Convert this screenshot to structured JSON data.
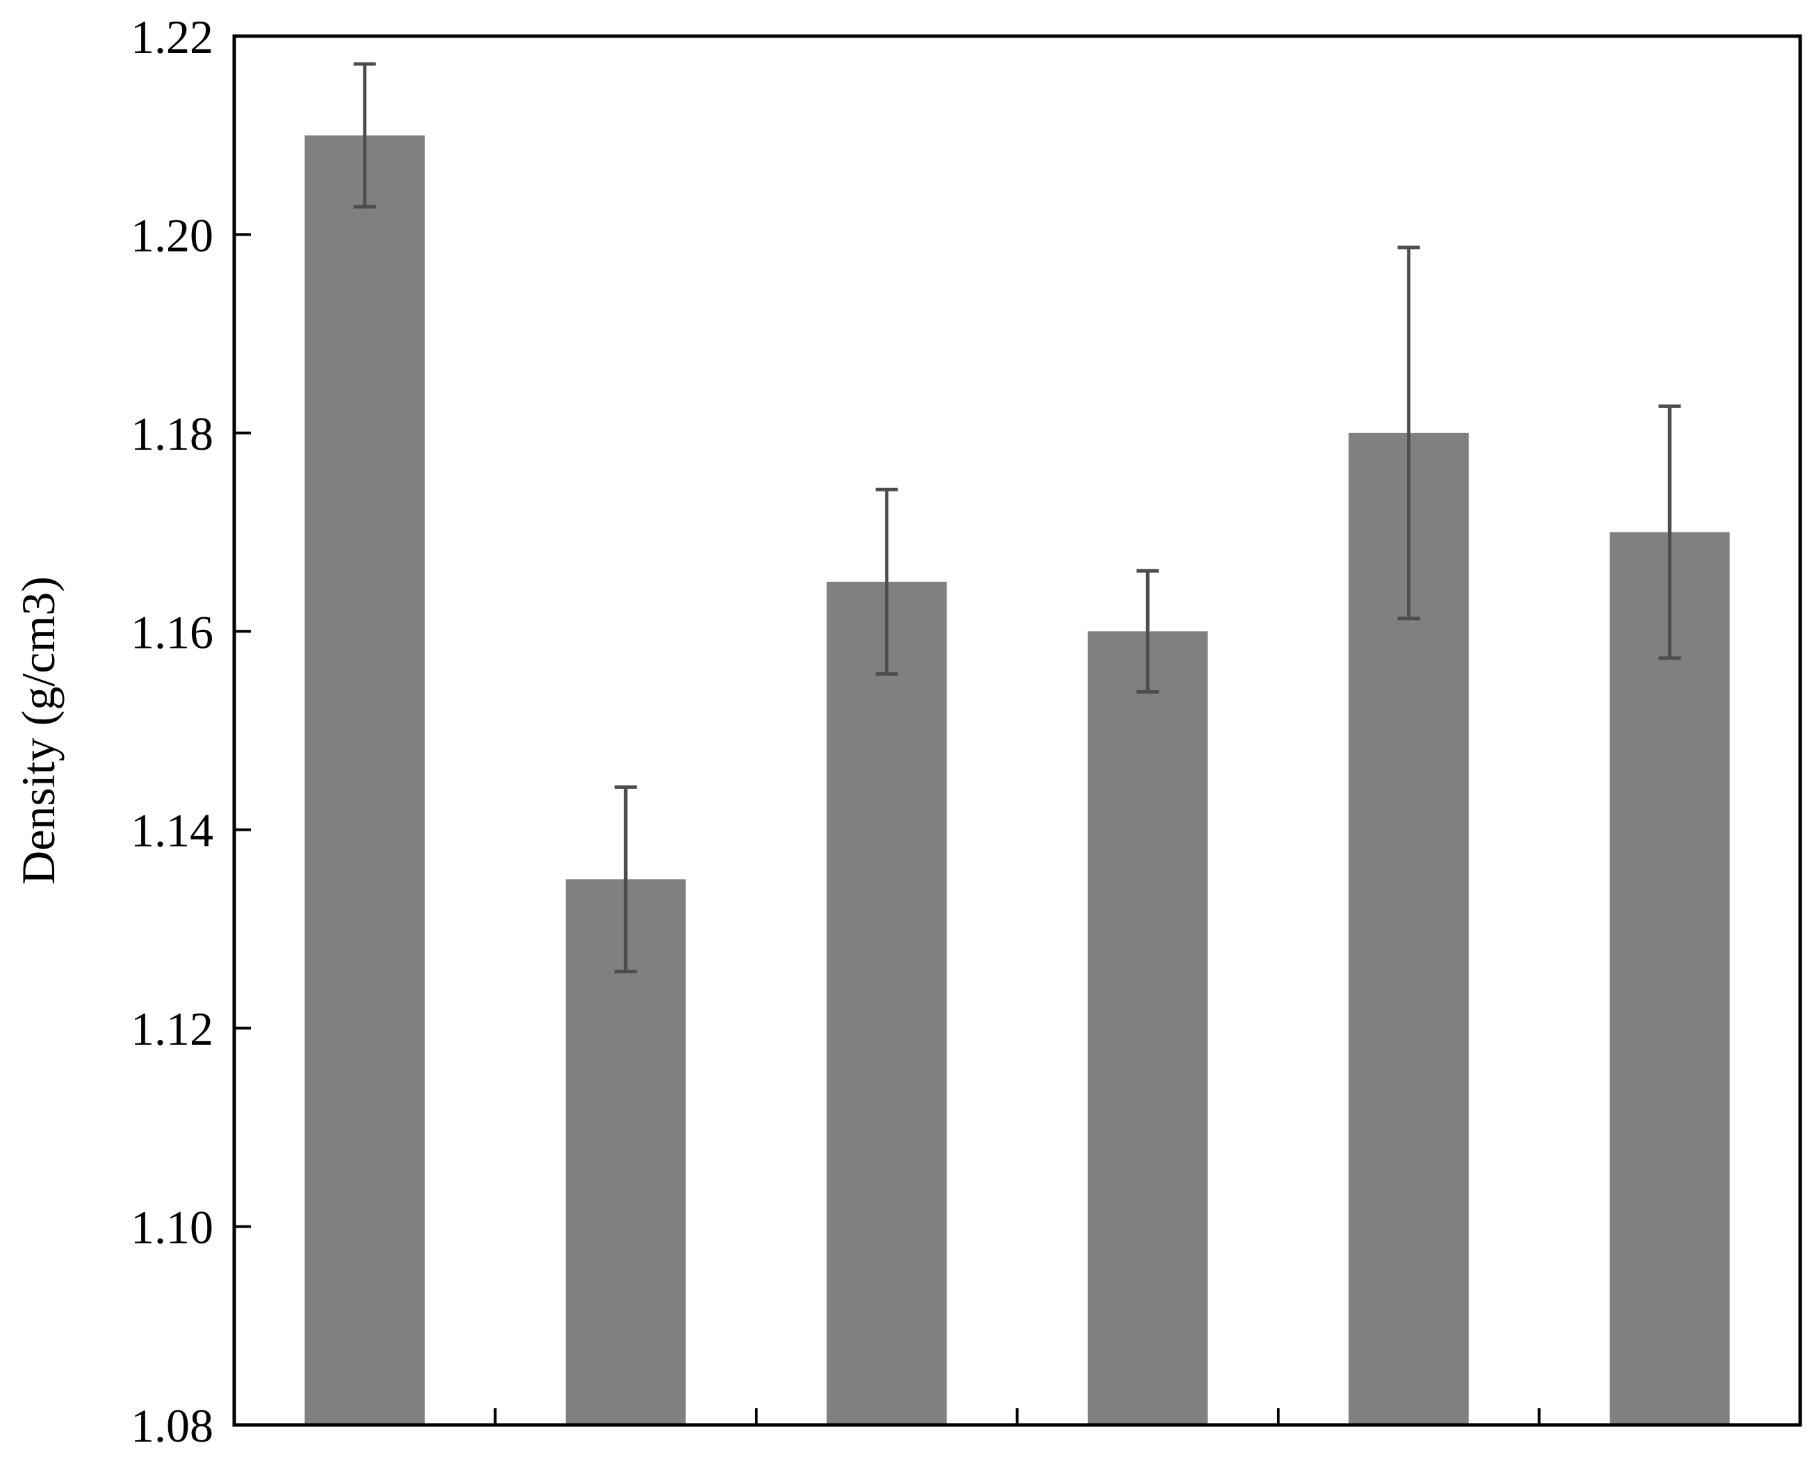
{
  "chart_data": {
    "type": "bar",
    "title": "",
    "xlabel": "",
    "ylabel": "Density (g/cm3)",
    "ylim": [
      1.08,
      1.22
    ],
    "yticks": [
      "1.08",
      "1.10",
      "1.12",
      "1.14",
      "1.16",
      "1.18",
      "1.20",
      "1.22"
    ],
    "categories": [
      "",
      "",
      "",
      "",
      "",
      ""
    ],
    "values": [
      1.21,
      1.135,
      1.165,
      1.16,
      1.18,
      1.17
    ],
    "errors": [
      0.0072,
      0.0093,
      0.0093,
      0.0061,
      0.0187,
      0.0127
    ],
    "grid": false,
    "legend": "none",
    "colors": {
      "bar": "#808080",
      "error_bar": "#4d4d4d",
      "axis": "#000000"
    }
  }
}
